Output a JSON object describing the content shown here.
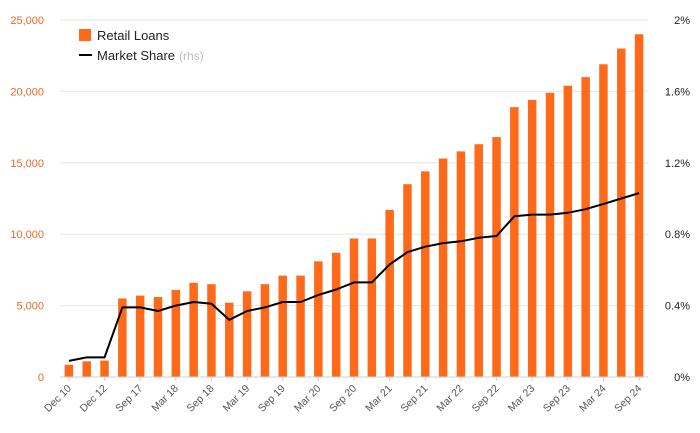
{
  "chart_data": {
    "type": "bar",
    "title": "",
    "colors": {
      "bars": "#ff6a1a",
      "line": "#000000",
      "left_axis": "#e8692a",
      "grid": "#e6e6e6"
    },
    "legend": {
      "position": "top-left",
      "items": [
        {
          "label": "Retail Loans",
          "kind": "bar"
        },
        {
          "label": "Market Share",
          "suffix": "(rhs)",
          "kind": "line"
        }
      ]
    },
    "x_tick_labels": [
      "Dec 10",
      "Dec 12",
      "Sep 17",
      "Mar 18",
      "Sep 18",
      "Mar 19",
      "Sep 19",
      "Mar 20",
      "Sep 20",
      "Mar 21",
      "Sep 21",
      "Mar 22",
      "Sep 22",
      "Mar 23",
      "Sep 23",
      "Mar 24",
      "Sep 24"
    ],
    "y_left": {
      "min": 0,
      "max": 25000,
      "ticks": [
        "0",
        "5,000",
        "10,000",
        "15,000",
        "20,000",
        "25,000"
      ]
    },
    "y_right": {
      "min": 0,
      "max": 2,
      "unit": "%",
      "ticks": [
        "0%",
        "0.4%",
        "0.8%",
        "1.2%",
        "1.6%",
        "2%"
      ]
    },
    "series": [
      {
        "name": "Retail Loans",
        "type": "bar",
        "values": [
          850,
          1100,
          1150,
          5500,
          5700,
          5600,
          6100,
          6600,
          6500,
          5200,
          6000,
          6500,
          7100,
          7100,
          8100,
          8700,
          9700,
          9700,
          11700,
          13500,
          14400,
          15300,
          15800,
          16300,
          16800,
          18900,
          19400,
          19900,
          20400,
          21000,
          21900,
          23000,
          24000
        ]
      },
      {
        "name": "Market Share",
        "type": "line",
        "axis": "right",
        "values": [
          0.09,
          0.11,
          0.11,
          0.39,
          0.39,
          0.37,
          0.4,
          0.42,
          0.41,
          0.32,
          0.37,
          0.39,
          0.42,
          0.42,
          0.46,
          0.49,
          0.53,
          0.53,
          0.63,
          0.7,
          0.73,
          0.75,
          0.76,
          0.78,
          0.79,
          0.9,
          0.91,
          0.91,
          0.92,
          0.94,
          0.97,
          1.0,
          1.03
        ]
      }
    ]
  }
}
